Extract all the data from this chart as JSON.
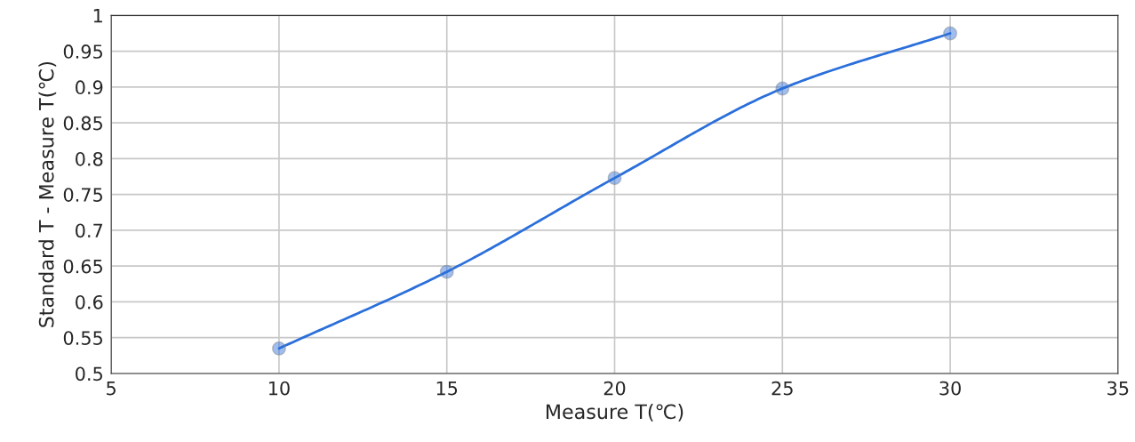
{
  "chart_data": {
    "type": "line",
    "xlabel": "Measure T(℃)",
    "ylabel": "Standard T - Measure T(℃)",
    "x": [
      10,
      15,
      20,
      25,
      30
    ],
    "series": [
      {
        "color": "#2a6fdb",
        "values": [
          0.535,
          0.642,
          0.773,
          0.898,
          0.975
        ]
      }
    ],
    "xlim": [
      5,
      35
    ],
    "xticks": [
      5,
      10,
      15,
      20,
      25,
      30,
      35
    ],
    "ylim": [
      0.5,
      1
    ],
    "yticks": [
      0.5,
      0.55,
      0.6,
      0.65,
      0.7,
      0.75,
      0.8,
      0.85,
      0.9,
      0.95,
      1
    ],
    "grid": true,
    "marker": "circle",
    "line_style": "solid",
    "legend": false
  }
}
